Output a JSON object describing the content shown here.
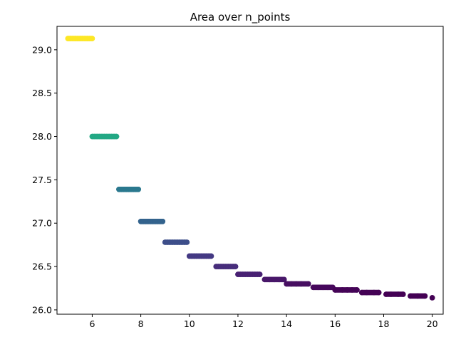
{
  "chart_data": {
    "type": "scatter",
    "title": "Area over n_points",
    "xlabel": "",
    "ylabel": "",
    "xlim": [
      4.55,
      20.45
    ],
    "ylim": [
      25.95,
      29.27
    ],
    "x_ticks": [
      6,
      8,
      10,
      12,
      14,
      16,
      18,
      20
    ],
    "y_ticks": [
      26.0,
      26.5,
      27.0,
      27.5,
      28.0,
      28.5,
      29.0
    ],
    "x_tick_labels": [
      "6",
      "8",
      "10",
      "12",
      "14",
      "16",
      "18",
      "20"
    ],
    "y_tick_labels": [
      "26.0",
      "26.5",
      "27.0",
      "27.5",
      "28.0",
      "28.5",
      "29.0"
    ],
    "grid": false,
    "colormap": "viridis",
    "segments": [
      {
        "x_start": 5.0,
        "x_end": 6.0,
        "y": 29.13,
        "color": "#fde725"
      },
      {
        "x_start": 6.0,
        "x_end": 7.0,
        "y": 28.0,
        "color": "#22a884"
      },
      {
        "x_start": 7.1,
        "x_end": 7.9,
        "y": 27.39,
        "color": "#2a788e"
      },
      {
        "x_start": 8.0,
        "x_end": 8.9,
        "y": 27.02,
        "color": "#33638d"
      },
      {
        "x_start": 9.0,
        "x_end": 9.9,
        "y": 26.78,
        "color": "#3d4e8a"
      },
      {
        "x_start": 10.0,
        "x_end": 10.9,
        "y": 26.62,
        "color": "#443983"
      },
      {
        "x_start": 11.1,
        "x_end": 11.9,
        "y": 26.5,
        "color": "#472d7b"
      },
      {
        "x_start": 12.0,
        "x_end": 12.9,
        "y": 26.41,
        "color": "#482173"
      },
      {
        "x_start": 13.1,
        "x_end": 13.9,
        "y": 26.35,
        "color": "#481769"
      },
      {
        "x_start": 14.0,
        "x_end": 14.9,
        "y": 26.3,
        "color": "#470e61"
      },
      {
        "x_start": 15.1,
        "x_end": 15.9,
        "y": 26.26,
        "color": "#46085c"
      },
      {
        "x_start": 16.0,
        "x_end": 16.9,
        "y": 26.23,
        "color": "#450457"
      },
      {
        "x_start": 17.1,
        "x_end": 17.8,
        "y": 26.2,
        "color": "#440255"
      },
      {
        "x_start": 18.1,
        "x_end": 18.8,
        "y": 26.18,
        "color": "#440154"
      },
      {
        "x_start": 19.1,
        "x_end": 19.7,
        "y": 26.16,
        "color": "#440154"
      },
      {
        "x_start": 20.0,
        "x_end": 20.0,
        "y": 26.14,
        "color": "#440154"
      }
    ],
    "points": [
      {
        "x": 5.0,
        "y": 29.13,
        "color": "#fde725"
      },
      {
        "x": 5.1,
        "y": 29.13,
        "color": "#fde725"
      },
      {
        "x": 5.2,
        "y": 29.13,
        "color": "#fde725"
      },
      {
        "x": 5.3,
        "y": 29.13,
        "color": "#fde725"
      },
      {
        "x": 5.4,
        "y": 29.13,
        "color": "#fde725"
      },
      {
        "x": 5.5,
        "y": 29.13,
        "color": "#fde725"
      },
      {
        "x": 5.6,
        "y": 29.13,
        "color": "#fde725"
      },
      {
        "x": 5.7,
        "y": 29.13,
        "color": "#fde725"
      },
      {
        "x": 5.8,
        "y": 29.13,
        "color": "#fde725"
      },
      {
        "x": 5.9,
        "y": 29.13,
        "color": "#fde725"
      },
      {
        "x": 6.0,
        "y": 29.13,
        "color": "#fde725"
      },
      {
        "x": 6.0,
        "y": 28.0,
        "color": "#22a884"
      },
      {
        "x": 6.1,
        "y": 28.0,
        "color": "#22a884"
      },
      {
        "x": 6.2,
        "y": 28.0,
        "color": "#22a884"
      },
      {
        "x": 6.3,
        "y": 28.0,
        "color": "#22a884"
      },
      {
        "x": 6.4,
        "y": 28.0,
        "color": "#22a884"
      },
      {
        "x": 6.5,
        "y": 28.0,
        "color": "#22a884"
      },
      {
        "x": 6.6,
        "y": 28.0,
        "color": "#22a884"
      },
      {
        "x": 6.7,
        "y": 28.0,
        "color": "#22a884"
      },
      {
        "x": 6.8,
        "y": 28.0,
        "color": "#22a884"
      },
      {
        "x": 6.9,
        "y": 28.0,
        "color": "#22a884"
      },
      {
        "x": 7.0,
        "y": 28.0,
        "color": "#22a884"
      },
      {
        "x": 7.1,
        "y": 27.39,
        "color": "#2a788e"
      },
      {
        "x": 7.2,
        "y": 27.39,
        "color": "#2a788e"
      },
      {
        "x": 7.3,
        "y": 27.39,
        "color": "#2a788e"
      },
      {
        "x": 7.4,
        "y": 27.39,
        "color": "#2a788e"
      },
      {
        "x": 7.5,
        "y": 27.39,
        "color": "#2a788e"
      },
      {
        "x": 7.6,
        "y": 27.39,
        "color": "#2a788e"
      },
      {
        "x": 7.7,
        "y": 27.39,
        "color": "#2a788e"
      },
      {
        "x": 7.8,
        "y": 27.39,
        "color": "#2a788e"
      },
      {
        "x": 7.9,
        "y": 27.39,
        "color": "#2a788e"
      },
      {
        "x": 8.0,
        "y": 27.02,
        "color": "#33638d"
      },
      {
        "x": 8.1,
        "y": 27.02,
        "color": "#33638d"
      },
      {
        "x": 8.2,
        "y": 27.02,
        "color": "#33638d"
      },
      {
        "x": 8.3,
        "y": 27.02,
        "color": "#33638d"
      },
      {
        "x": 8.4,
        "y": 27.02,
        "color": "#33638d"
      },
      {
        "x": 8.5,
        "y": 27.02,
        "color": "#33638d"
      },
      {
        "x": 8.6,
        "y": 27.02,
        "color": "#33638d"
      },
      {
        "x": 8.7,
        "y": 27.02,
        "color": "#33638d"
      },
      {
        "x": 8.8,
        "y": 27.02,
        "color": "#33638d"
      },
      {
        "x": 8.9,
        "y": 27.02,
        "color": "#33638d"
      },
      {
        "x": 9.0,
        "y": 26.78,
        "color": "#3d4e8a"
      },
      {
        "x": 9.1,
        "y": 26.78,
        "color": "#3d4e8a"
      },
      {
        "x": 9.2,
        "y": 26.78,
        "color": "#3d4e8a"
      },
      {
        "x": 9.3,
        "y": 26.78,
        "color": "#3d4e8a"
      },
      {
        "x": 9.4,
        "y": 26.78,
        "color": "#3d4e8a"
      },
      {
        "x": 9.5,
        "y": 26.78,
        "color": "#3d4e8a"
      },
      {
        "x": 9.6,
        "y": 26.78,
        "color": "#3d4e8a"
      },
      {
        "x": 9.7,
        "y": 26.78,
        "color": "#3d4e8a"
      },
      {
        "x": 9.8,
        "y": 26.78,
        "color": "#3d4e8a"
      },
      {
        "x": 9.9,
        "y": 26.78,
        "color": "#3d4e8a"
      },
      {
        "x": 10.0,
        "y": 26.62,
        "color": "#443983"
      },
      {
        "x": 10.1,
        "y": 26.62,
        "color": "#443983"
      },
      {
        "x": 10.2,
        "y": 26.62,
        "color": "#443983"
      },
      {
        "x": 10.3,
        "y": 26.62,
        "color": "#443983"
      },
      {
        "x": 10.4,
        "y": 26.62,
        "color": "#443983"
      },
      {
        "x": 10.5,
        "y": 26.62,
        "color": "#443983"
      },
      {
        "x": 10.6,
        "y": 26.62,
        "color": "#443983"
      },
      {
        "x": 10.7,
        "y": 26.62,
        "color": "#443983"
      },
      {
        "x": 10.8,
        "y": 26.62,
        "color": "#443983"
      },
      {
        "x": 10.9,
        "y": 26.62,
        "color": "#443983"
      },
      {
        "x": 11.1,
        "y": 26.5,
        "color": "#472d7b"
      },
      {
        "x": 11.2,
        "y": 26.5,
        "color": "#472d7b"
      },
      {
        "x": 11.3,
        "y": 26.5,
        "color": "#472d7b"
      },
      {
        "x": 11.4,
        "y": 26.5,
        "color": "#472d7b"
      },
      {
        "x": 11.5,
        "y": 26.5,
        "color": "#472d7b"
      },
      {
        "x": 11.6,
        "y": 26.5,
        "color": "#472d7b"
      },
      {
        "x": 11.7,
        "y": 26.5,
        "color": "#472d7b"
      },
      {
        "x": 11.8,
        "y": 26.5,
        "color": "#472d7b"
      },
      {
        "x": 11.9,
        "y": 26.5,
        "color": "#472d7b"
      },
      {
        "x": 12.0,
        "y": 26.41,
        "color": "#482173"
      },
      {
        "x": 12.1,
        "y": 26.41,
        "color": "#482173"
      },
      {
        "x": 12.2,
        "y": 26.41,
        "color": "#482173"
      },
      {
        "x": 12.3,
        "y": 26.41,
        "color": "#482173"
      },
      {
        "x": 12.4,
        "y": 26.41,
        "color": "#482173"
      },
      {
        "x": 12.5,
        "y": 26.41,
        "color": "#482173"
      },
      {
        "x": 12.6,
        "y": 26.41,
        "color": "#482173"
      },
      {
        "x": 12.7,
        "y": 26.41,
        "color": "#482173"
      },
      {
        "x": 12.8,
        "y": 26.41,
        "color": "#482173"
      },
      {
        "x": 12.9,
        "y": 26.41,
        "color": "#482173"
      },
      {
        "x": 13.1,
        "y": 26.35,
        "color": "#481769"
      },
      {
        "x": 13.3,
        "y": 26.35,
        "color": "#481769"
      },
      {
        "x": 13.5,
        "y": 26.35,
        "color": "#481769"
      },
      {
        "x": 13.7,
        "y": 26.35,
        "color": "#481769"
      },
      {
        "x": 13.9,
        "y": 26.35,
        "color": "#481769"
      },
      {
        "x": 14.0,
        "y": 26.3,
        "color": "#470e61"
      },
      {
        "x": 14.2,
        "y": 26.3,
        "color": "#470e61"
      },
      {
        "x": 14.4,
        "y": 26.3,
        "color": "#470e61"
      },
      {
        "x": 14.6,
        "y": 26.3,
        "color": "#470e61"
      },
      {
        "x": 14.9,
        "y": 26.3,
        "color": "#470e61"
      },
      {
        "x": 15.1,
        "y": 26.26,
        "color": "#46085c"
      },
      {
        "x": 15.3,
        "y": 26.26,
        "color": "#46085c"
      },
      {
        "x": 15.5,
        "y": 26.26,
        "color": "#46085c"
      },
      {
        "x": 15.7,
        "y": 26.26,
        "color": "#46085c"
      },
      {
        "x": 15.9,
        "y": 26.26,
        "color": "#46085c"
      },
      {
        "x": 16.0,
        "y": 26.23,
        "color": "#450457"
      },
      {
        "x": 16.3,
        "y": 26.23,
        "color": "#450457"
      },
      {
        "x": 16.5,
        "y": 26.23,
        "color": "#450457"
      },
      {
        "x": 16.7,
        "y": 26.23,
        "color": "#450457"
      },
      {
        "x": 16.9,
        "y": 26.23,
        "color": "#450457"
      },
      {
        "x": 17.1,
        "y": 26.2,
        "color": "#440255"
      },
      {
        "x": 17.3,
        "y": 26.2,
        "color": "#440255"
      },
      {
        "x": 17.6,
        "y": 26.2,
        "color": "#440255"
      },
      {
        "x": 17.8,
        "y": 26.2,
        "color": "#440255"
      },
      {
        "x": 18.1,
        "y": 26.18,
        "color": "#440154"
      },
      {
        "x": 18.3,
        "y": 26.18,
        "color": "#440154"
      },
      {
        "x": 18.6,
        "y": 26.18,
        "color": "#440154"
      },
      {
        "x": 18.8,
        "y": 26.18,
        "color": "#440154"
      },
      {
        "x": 19.1,
        "y": 26.16,
        "color": "#440154"
      },
      {
        "x": 19.4,
        "y": 26.16,
        "color": "#440154"
      },
      {
        "x": 19.7,
        "y": 26.16,
        "color": "#440154"
      },
      {
        "x": 20.0,
        "y": 26.14,
        "color": "#440154"
      }
    ]
  }
}
